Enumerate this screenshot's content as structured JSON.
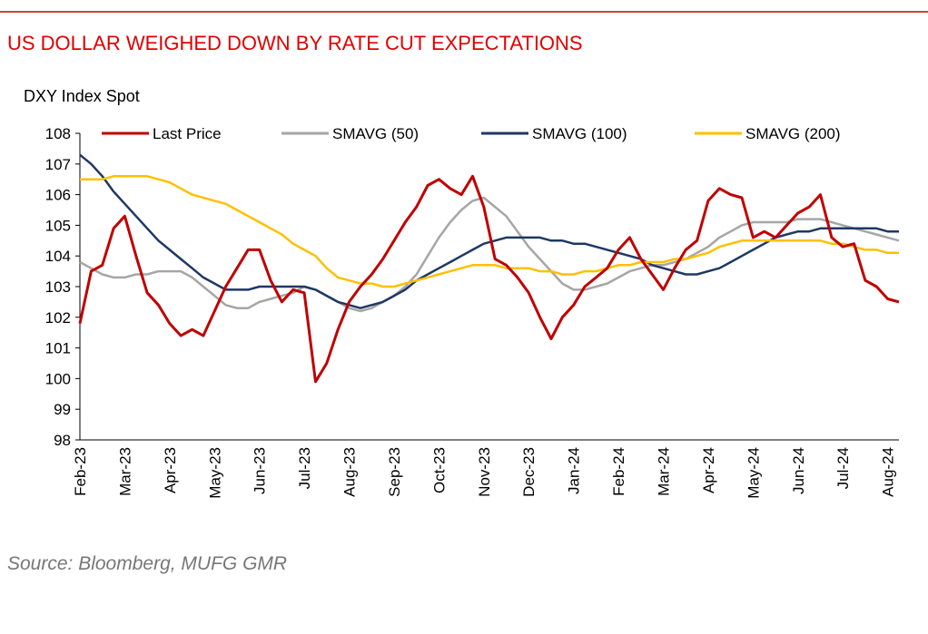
{
  "chart_data": {
    "type": "line",
    "title": "US DOLLAR WEIGHED DOWN BY RATE CUT EXPECTATIONS",
    "y_label": "DXY Index Spot",
    "source": "Source: Bloomberg, MUFG GMR",
    "categories": [
      "Feb-23",
      null,
      null,
      null,
      "Mar-23",
      null,
      null,
      null,
      "Apr-23",
      null,
      null,
      null,
      "May-23",
      null,
      null,
      null,
      "Jun-23",
      null,
      null,
      null,
      "Jul-23",
      null,
      null,
      null,
      "Aug-23",
      null,
      null,
      null,
      "Sep-23",
      null,
      null,
      null,
      "Oct-23",
      null,
      null,
      null,
      "Nov-23",
      null,
      null,
      null,
      "Dec-23",
      null,
      null,
      null,
      "Jan-24",
      null,
      null,
      null,
      "Feb-24",
      null,
      null,
      null,
      "Mar-24",
      null,
      null,
      null,
      "Apr-24",
      null,
      null,
      null,
      "May-24",
      null,
      null,
      null,
      "Jun-24",
      null,
      null,
      null,
      "Jul-24",
      null,
      null,
      null,
      "Aug-24",
      null
    ],
    "series": [
      {
        "name": "Last Price",
        "color": "#c00000",
        "width": 3,
        "values": [
          101.8,
          103.5,
          103.7,
          104.9,
          105.3,
          104.0,
          102.8,
          102.4,
          101.8,
          101.4,
          101.6,
          101.4,
          102.2,
          103.0,
          103.6,
          104.2,
          104.2,
          103.2,
          102.5,
          102.9,
          102.8,
          99.9,
          100.5,
          101.6,
          102.5,
          103.0,
          103.4,
          103.9,
          104.5,
          105.1,
          105.6,
          106.3,
          106.5,
          106.2,
          106.0,
          106.6,
          105.6,
          103.9,
          103.7,
          103.3,
          102.8,
          102.0,
          101.3,
          102.0,
          102.4,
          103.0,
          103.3,
          103.6,
          104.2,
          104.6,
          103.9,
          103.4,
          102.9,
          103.6,
          104.2,
          104.5,
          105.8,
          106.2,
          106.0,
          105.9,
          104.6,
          104.8,
          104.6,
          105.0,
          105.4,
          105.6,
          106.0,
          104.6,
          104.3,
          104.4,
          103.2,
          103.0,
          102.6,
          102.5
        ]
      },
      {
        "name": "SMAVG (50)",
        "color": "#a6a6a6",
        "width": 2.5,
        "values": [
          103.8,
          103.6,
          103.4,
          103.3,
          103.3,
          103.4,
          103.4,
          103.5,
          103.5,
          103.5,
          103.3,
          103.0,
          102.7,
          102.4,
          102.3,
          102.3,
          102.5,
          102.6,
          102.7,
          102.8,
          103.0,
          102.9,
          102.7,
          102.5,
          102.3,
          102.2,
          102.3,
          102.5,
          102.7,
          103.0,
          103.4,
          104.0,
          104.6,
          105.1,
          105.5,
          105.8,
          105.9,
          105.6,
          105.3,
          104.8,
          104.3,
          103.9,
          103.5,
          103.1,
          102.9,
          102.9,
          103.0,
          103.1,
          103.3,
          103.5,
          103.6,
          103.7,
          103.7,
          103.8,
          103.9,
          104.1,
          104.3,
          104.6,
          104.8,
          105.0,
          105.1,
          105.1,
          105.1,
          105.1,
          105.2,
          105.2,
          105.2,
          105.1,
          105.0,
          104.9,
          104.8,
          104.7,
          104.6,
          104.5
        ]
      },
      {
        "name": "SMAVG (100)",
        "color": "#1f3864",
        "width": 2.5,
        "values": [
          107.3,
          107.0,
          106.6,
          106.1,
          105.7,
          105.3,
          104.9,
          104.5,
          104.2,
          103.9,
          103.6,
          103.3,
          103.1,
          102.9,
          102.9,
          102.9,
          103.0,
          103.0,
          103.0,
          103.0,
          103.0,
          102.9,
          102.7,
          102.5,
          102.4,
          102.3,
          102.4,
          102.5,
          102.7,
          102.9,
          103.2,
          103.4,
          103.6,
          103.8,
          104.0,
          104.2,
          104.4,
          104.5,
          104.6,
          104.6,
          104.6,
          104.6,
          104.5,
          104.5,
          104.4,
          104.4,
          104.3,
          104.2,
          104.1,
          104.0,
          103.9,
          103.7,
          103.6,
          103.5,
          103.4,
          103.4,
          103.5,
          103.6,
          103.8,
          104.0,
          104.2,
          104.4,
          104.6,
          104.7,
          104.8,
          104.8,
          104.9,
          104.9,
          104.9,
          104.9,
          104.9,
          104.9,
          104.8,
          104.8
        ]
      },
      {
        "name": "SMAVG (200)",
        "color": "#ffc000",
        "width": 2.5,
        "values": [
          106.5,
          106.5,
          106.5,
          106.6,
          106.6,
          106.6,
          106.6,
          106.5,
          106.4,
          106.2,
          106.0,
          105.9,
          105.8,
          105.7,
          105.5,
          105.3,
          105.1,
          104.9,
          104.7,
          104.4,
          104.2,
          104.0,
          103.6,
          103.3,
          103.2,
          103.1,
          103.1,
          103.0,
          103.0,
          103.1,
          103.2,
          103.3,
          103.4,
          103.5,
          103.6,
          103.7,
          103.7,
          103.7,
          103.6,
          103.6,
          103.6,
          103.5,
          103.5,
          103.4,
          103.4,
          103.5,
          103.5,
          103.6,
          103.7,
          103.7,
          103.8,
          103.8,
          103.8,
          103.9,
          103.9,
          104.0,
          104.1,
          104.3,
          104.4,
          104.5,
          104.5,
          104.5,
          104.5,
          104.5,
          104.5,
          104.5,
          104.5,
          104.4,
          104.4,
          104.3,
          104.2,
          104.2,
          104.1,
          104.1
        ]
      }
    ],
    "ylim": [
      98,
      108
    ],
    "yticks": [
      98,
      99,
      100,
      101,
      102,
      103,
      104,
      105,
      106,
      107,
      108
    ]
  }
}
